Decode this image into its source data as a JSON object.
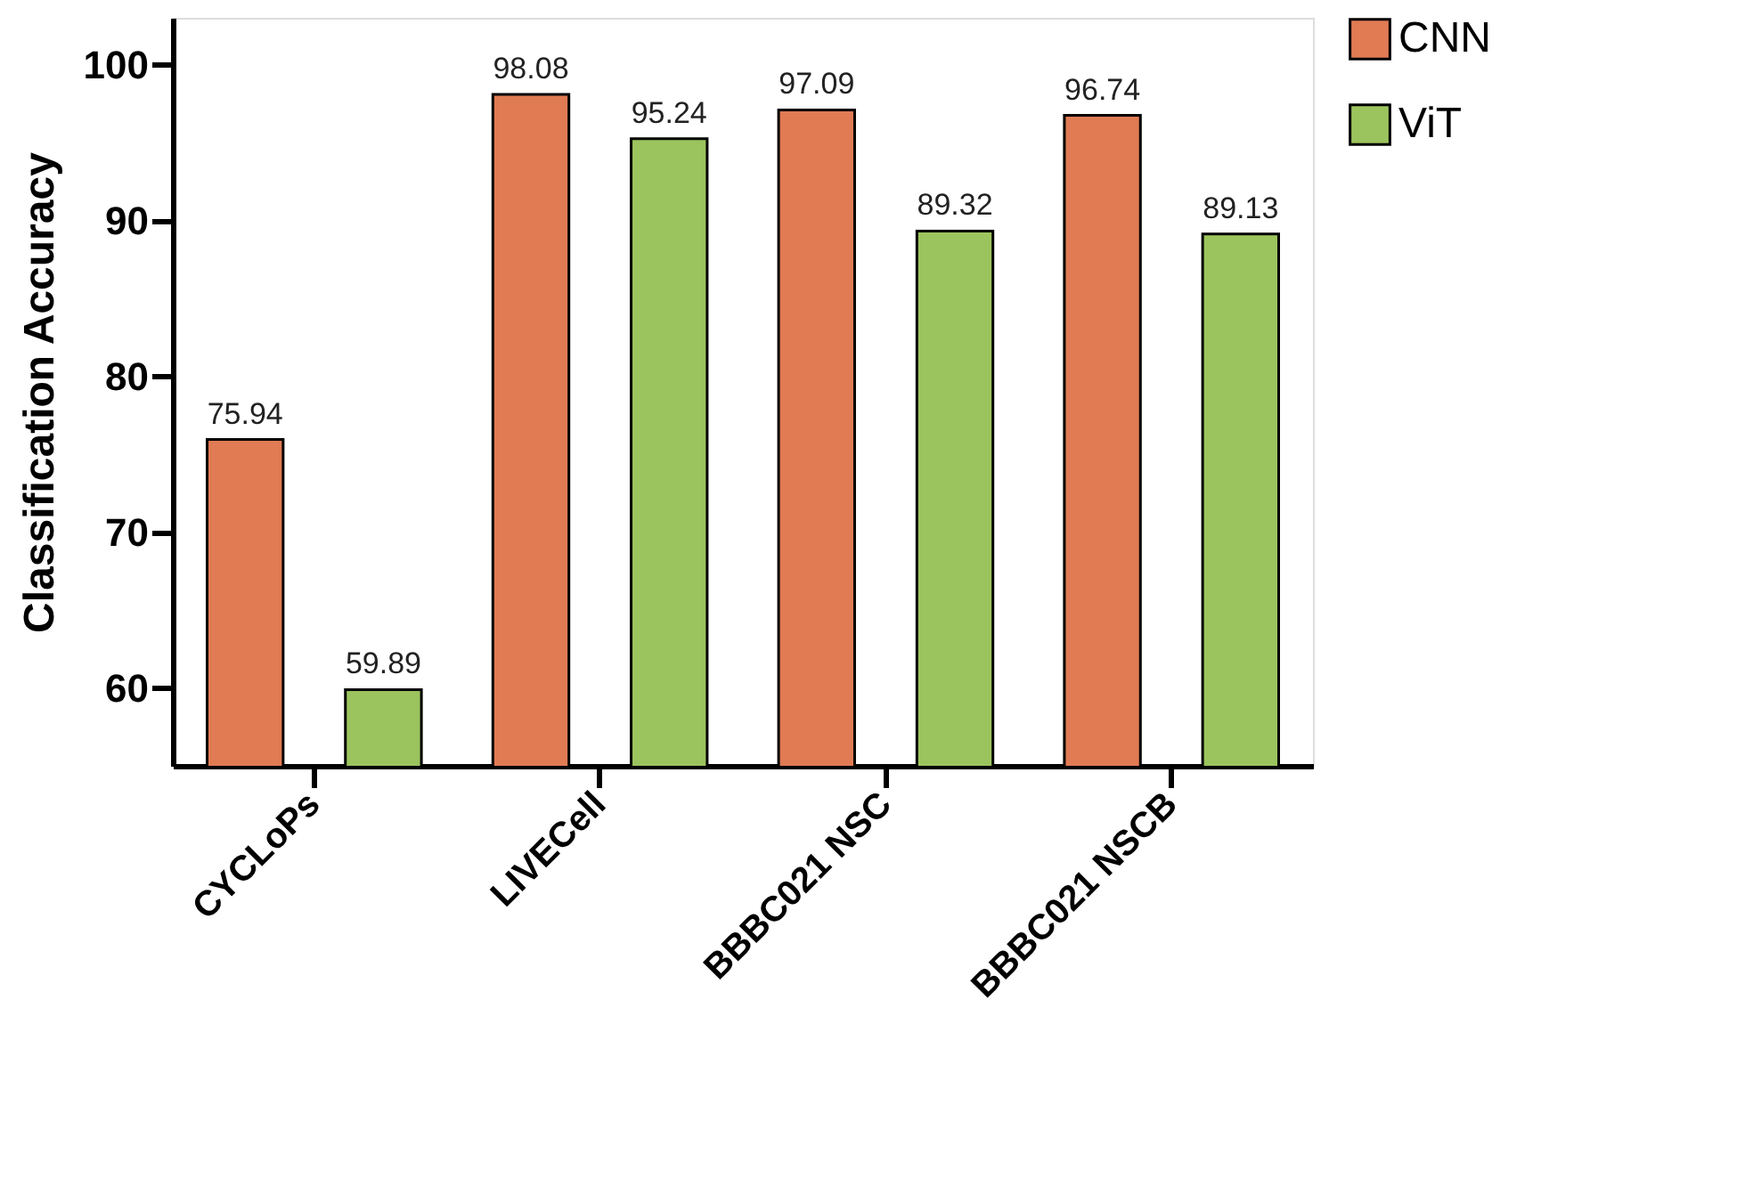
{
  "chart_data": {
    "type": "bar",
    "ylabel": "Classification Accuracy",
    "categories": [
      "CYCLoPs",
      "LIVECell",
      "BBBC021 NSC",
      "BBBC021 NSCB"
    ],
    "series": [
      {
        "name": "CNN",
        "color": "#e07b54",
        "values": [
          75.94,
          98.08,
          97.09,
          96.74
        ]
      },
      {
        "name": "ViT",
        "color": "#9cc45e",
        "values": [
          59.89,
          95.24,
          89.32,
          89.13
        ]
      }
    ],
    "ylim": [
      55,
      103
    ],
    "yticks": [
      60,
      70,
      80,
      90,
      100
    ],
    "grid": false,
    "legend": "top right",
    "data_labels": true
  }
}
